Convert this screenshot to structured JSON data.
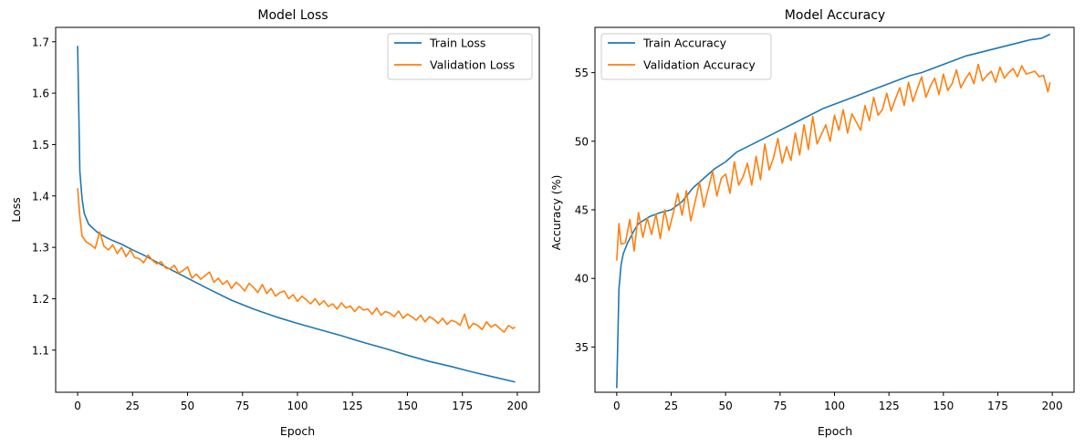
{
  "chart_data": [
    {
      "type": "line",
      "title": "Model Loss",
      "xlabel": "Epoch",
      "ylabel": "Loss",
      "xlim": [
        -10,
        210
      ],
      "ylim": [
        1.018,
        1.728
      ],
      "xticks": [
        0,
        25,
        50,
        75,
        100,
        125,
        150,
        175,
        200
      ],
      "yticks": [
        1.1,
        1.2,
        1.3,
        1.4,
        1.5,
        1.6,
        1.7
      ],
      "tick_decimals": 1,
      "legend_position": "upper right",
      "series": [
        {
          "name": "Train Loss",
          "color": "#1f77b4",
          "x": [
            0,
            1,
            2,
            3,
            5,
            8,
            10,
            15,
            20,
            25,
            30,
            40,
            50,
            60,
            70,
            80,
            90,
            100,
            110,
            120,
            130,
            140,
            150,
            160,
            170,
            180,
            190,
            199
          ],
          "y": [
            1.692,
            1.448,
            1.395,
            1.366,
            1.345,
            1.333,
            1.326,
            1.315,
            1.306,
            1.295,
            1.285,
            1.262,
            1.24,
            1.218,
            1.197,
            1.18,
            1.165,
            1.152,
            1.14,
            1.128,
            1.115,
            1.103,
            1.09,
            1.078,
            1.068,
            1.057,
            1.047,
            1.038
          ]
        },
        {
          "name": "Validation Loss",
          "color": "#ff7f0e",
          "x": [
            0,
            1,
            2,
            4,
            6,
            8,
            10,
            12,
            14,
            16,
            18,
            20,
            22,
            24,
            26,
            28,
            30,
            32,
            34,
            36,
            38,
            40,
            42,
            44,
            46,
            48,
            50,
            52,
            54,
            56,
            58,
            60,
            62,
            64,
            66,
            68,
            70,
            72,
            74,
            76,
            78,
            80,
            82,
            84,
            86,
            88,
            90,
            92,
            94,
            96,
            98,
            100,
            102,
            104,
            106,
            108,
            110,
            112,
            114,
            116,
            118,
            120,
            122,
            124,
            126,
            128,
            130,
            132,
            134,
            136,
            138,
            140,
            142,
            144,
            146,
            148,
            150,
            152,
            154,
            156,
            158,
            160,
            162,
            164,
            166,
            168,
            170,
            172,
            174,
            176,
            178,
            180,
            182,
            184,
            186,
            188,
            190,
            192,
            194,
            196,
            198,
            199
          ],
          "y": [
            1.415,
            1.36,
            1.322,
            1.31,
            1.305,
            1.298,
            1.33,
            1.302,
            1.295,
            1.305,
            1.288,
            1.3,
            1.282,
            1.295,
            1.28,
            1.278,
            1.27,
            1.285,
            1.275,
            1.268,
            1.272,
            1.26,
            1.258,
            1.265,
            1.25,
            1.255,
            1.262,
            1.24,
            1.248,
            1.238,
            1.245,
            1.252,
            1.232,
            1.24,
            1.228,
            1.235,
            1.22,
            1.232,
            1.225,
            1.215,
            1.23,
            1.222,
            1.212,
            1.228,
            1.21,
            1.22,
            1.205,
            1.212,
            1.215,
            1.2,
            1.208,
            1.195,
            1.205,
            1.198,
            1.19,
            1.2,
            1.188,
            1.196,
            1.185,
            1.19,
            1.18,
            1.192,
            1.182,
            1.186,
            1.175,
            1.185,
            1.178,
            1.18,
            1.17,
            1.182,
            1.168,
            1.175,
            1.172,
            1.165,
            1.176,
            1.162,
            1.17,
            1.165,
            1.158,
            1.168,
            1.155,
            1.165,
            1.16,
            1.152,
            1.162,
            1.15,
            1.158,
            1.155,
            1.148,
            1.17,
            1.142,
            1.152,
            1.148,
            1.14,
            1.155,
            1.145,
            1.15,
            1.142,
            1.135,
            1.148,
            1.142,
            1.145
          ]
        }
      ]
    },
    {
      "type": "line",
      "title": "Model Accuracy",
      "xlabel": "Epoch",
      "ylabel": "Accuracy (%)",
      "xlim": [
        -10,
        210
      ],
      "ylim": [
        31.7,
        58.3
      ],
      "xticks": [
        0,
        25,
        50,
        75,
        100,
        125,
        150,
        175,
        200
      ],
      "yticks": [
        35,
        40,
        45,
        50,
        55
      ],
      "tick_decimals": 0,
      "legend_position": "upper left",
      "series": [
        {
          "name": "Train Accuracy",
          "color": "#1f77b4",
          "x": [
            0,
            1,
            2,
            3,
            5,
            8,
            10,
            15,
            20,
            25,
            30,
            35,
            40,
            45,
            50,
            55,
            60,
            65,
            70,
            75,
            80,
            85,
            90,
            95,
            100,
            105,
            110,
            115,
            120,
            125,
            130,
            135,
            140,
            145,
            150,
            155,
            160,
            165,
            170,
            175,
            180,
            185,
            190,
            195,
            199
          ],
          "y": [
            32.0,
            39.2,
            41.0,
            41.8,
            42.6,
            43.5,
            44.0,
            44.5,
            44.8,
            45.0,
            45.6,
            46.6,
            47.3,
            48.0,
            48.5,
            49.2,
            49.6,
            50.0,
            50.4,
            50.8,
            51.2,
            51.6,
            52.0,
            52.4,
            52.7,
            53.0,
            53.3,
            53.6,
            53.9,
            54.2,
            54.5,
            54.8,
            55.0,
            55.3,
            55.6,
            55.9,
            56.2,
            56.4,
            56.6,
            56.8,
            57.0,
            57.2,
            57.4,
            57.5,
            57.8
          ]
        },
        {
          "name": "Validation Accuracy",
          "color": "#ff7f0e",
          "x": [
            0,
            1,
            2,
            4,
            6,
            8,
            10,
            12,
            14,
            16,
            18,
            20,
            22,
            24,
            26,
            28,
            30,
            32,
            34,
            36,
            38,
            40,
            42,
            44,
            46,
            48,
            50,
            52,
            54,
            56,
            58,
            60,
            62,
            64,
            66,
            68,
            70,
            72,
            74,
            76,
            78,
            80,
            82,
            84,
            86,
            88,
            90,
            92,
            94,
            96,
            98,
            100,
            102,
            104,
            106,
            108,
            110,
            112,
            114,
            116,
            118,
            120,
            122,
            124,
            126,
            128,
            130,
            132,
            134,
            136,
            138,
            140,
            142,
            144,
            146,
            148,
            150,
            152,
            154,
            156,
            158,
            160,
            162,
            164,
            166,
            168,
            170,
            172,
            174,
            176,
            178,
            180,
            182,
            184,
            186,
            188,
            190,
            192,
            194,
            196,
            198,
            199
          ],
          "y": [
            41.3,
            44.0,
            42.5,
            42.6,
            44.3,
            42.0,
            44.8,
            43.0,
            44.4,
            43.2,
            44.7,
            42.9,
            45.0,
            43.5,
            44.8,
            46.2,
            44.6,
            46.4,
            44.2,
            45.6,
            47.0,
            45.2,
            46.5,
            47.8,
            46.0,
            47.3,
            47.6,
            46.2,
            48.5,
            46.8,
            47.4,
            48.4,
            46.8,
            48.9,
            47.2,
            49.8,
            47.9,
            48.8,
            50.2,
            48.4,
            49.6,
            48.6,
            50.6,
            49.0,
            51.2,
            49.4,
            51.8,
            49.8,
            50.5,
            51.2,
            50.0,
            51.9,
            50.8,
            52.3,
            50.6,
            52.0,
            51.4,
            50.8,
            52.6,
            51.5,
            53.2,
            51.9,
            52.3,
            53.5,
            52.2,
            53.1,
            53.9,
            52.6,
            54.3,
            52.9,
            53.8,
            54.7,
            53.2,
            54.0,
            54.6,
            53.4,
            54.9,
            53.7,
            54.2,
            55.2,
            53.9,
            54.5,
            55.0,
            54.2,
            55.6,
            54.4,
            54.8,
            55.1,
            54.3,
            55.4,
            54.6,
            55.0,
            55.3,
            54.7,
            55.5,
            54.9,
            55.0,
            55.1,
            54.7,
            54.8,
            53.6,
            54.3
          ]
        }
      ]
    }
  ]
}
